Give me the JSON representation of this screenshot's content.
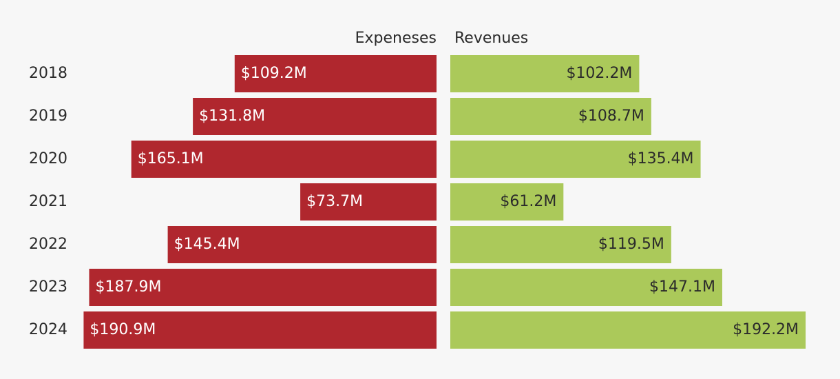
{
  "chart_data": {
    "type": "bar",
    "layout": "diverging-horizontal",
    "categories": [
      "2018",
      "2019",
      "2020",
      "2021",
      "2022",
      "2023",
      "2024"
    ],
    "series": [
      {
        "name": "Expeneses",
        "direction": "left",
        "color": "#b0272e",
        "label_color": "#ffffff",
        "values": [
          109.2,
          131.8,
          165.1,
          73.7,
          145.4,
          187.9,
          190.9
        ],
        "labels": [
          "$109.2M",
          "$131.8M",
          "$165.1M",
          "$73.7M",
          "$145.4M",
          "$187.9M",
          "$190.9M"
        ]
      },
      {
        "name": "Revenues",
        "direction": "right",
        "color": "#abc95a",
        "label_color": "#2b2b2b",
        "values": [
          102.2,
          108.7,
          135.4,
          61.2,
          119.5,
          147.1,
          192.2
        ],
        "labels": [
          "$102.2M",
          "$108.7M",
          "$135.4M",
          "$61.2M",
          "$119.5M",
          "$147.1M",
          "$192.2M"
        ]
      }
    ],
    "value_unit": "$M",
    "grid": false,
    "background": "#f7f7f7",
    "category_label_color": "#2b2b2b"
  }
}
